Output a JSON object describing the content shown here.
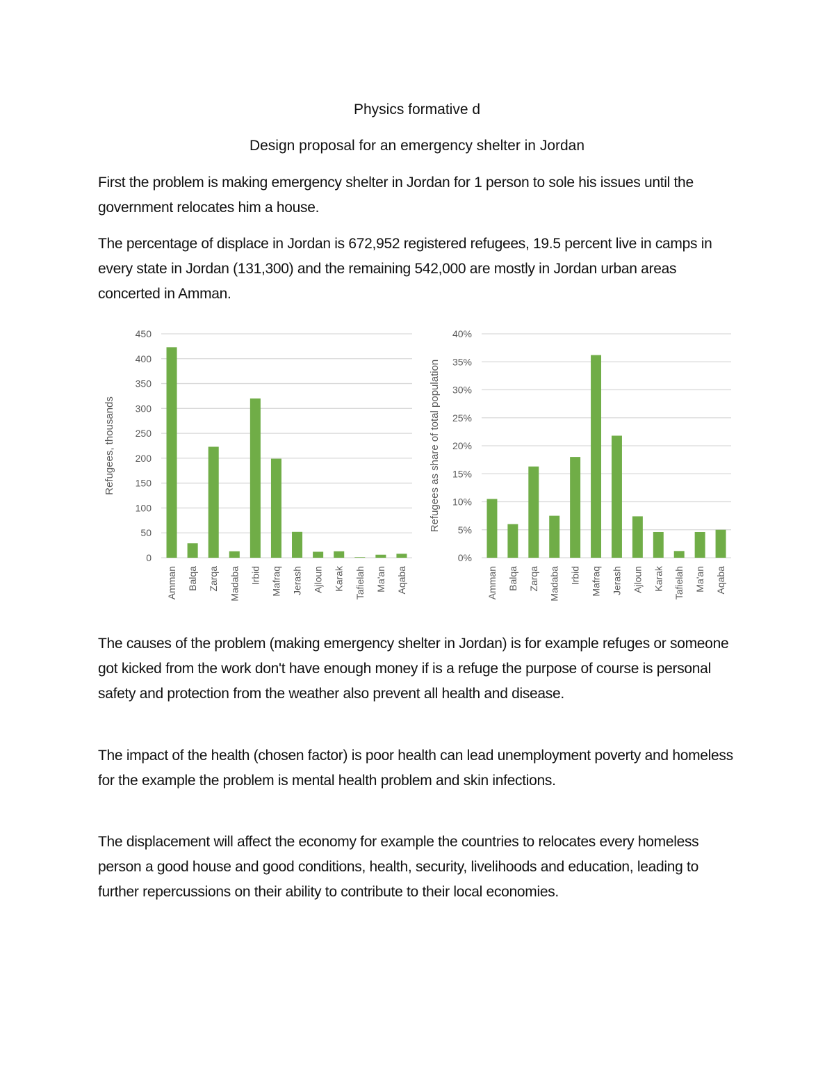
{
  "document": {
    "title": "Physics formative d",
    "subtitle": "Design proposal for an emergency shelter in Jordan",
    "paragraphs": [
      "First the problem is making emergency shelter in Jordan for 1 person to sole his issues until the government relocates him a house.",
      "The percentage of displace in Jordan is 672,952 registered refugees, 19.5 percent live in camps in every state in Jordan (131,300) and the remaining 542,000 are mostly in Jordan urban areas concerted in Amman.",
      "The causes of the problem (making emergency shelter in Jordan) is for example refuges or someone got kicked from the work don't have enough money if is a refuge the purpose of course is personal safety and protection from the weather also prevent all health and disease.",
      "The impact of the health (chosen factor) is poor health can lead unemployment poverty and homeless for the example the problem is mental health problem and skin infections.",
      "The displacement will affect the economy for example the countries to relocates every homeless person a good house and good conditions, health, security, livelihoods and education, leading to further repercussions on their ability to contribute to their local economies."
    ]
  },
  "chart_data": [
    {
      "type": "bar",
      "title": "",
      "xlabel": "",
      "ylabel": "Refugees, thousands",
      "categories": [
        "Amman",
        "Balqa",
        "Zarqa",
        "Madaba",
        "Irbid",
        "Mafraq",
        "Jerash",
        "Ajloun",
        "Karak",
        "Tafielah",
        "Ma'an",
        "Aqaba"
      ],
      "values": [
        423,
        29,
        223,
        13,
        320,
        199,
        52,
        12,
        13,
        1,
        6,
        8
      ],
      "ylim": [
        0,
        450
      ],
      "yticks": [
        "0",
        "50",
        "100",
        "150",
        "200",
        "250",
        "300",
        "350",
        "400",
        "450"
      ],
      "grid": true,
      "color": "#70ad47"
    },
    {
      "type": "bar",
      "title": "",
      "xlabel": "",
      "ylabel": "Refugees as share of total population",
      "categories": [
        "Amman",
        "Balqa",
        "Zarqa",
        "Madaba",
        "Irbid",
        "Mafraq",
        "Jerash",
        "Ajloun",
        "Karak",
        "Tafielah",
        "Ma'an",
        "Aqaba"
      ],
      "values": [
        10.5,
        6.0,
        16.3,
        7.5,
        18.0,
        36.2,
        21.8,
        7.4,
        4.6,
        1.2,
        4.6,
        5.0
      ],
      "ylim": [
        0,
        40
      ],
      "yticks": [
        "0%",
        "5%",
        "10%",
        "15%",
        "20%",
        "25%",
        "30%",
        "35%",
        "40%"
      ],
      "grid": true,
      "color": "#70ad47"
    }
  ]
}
